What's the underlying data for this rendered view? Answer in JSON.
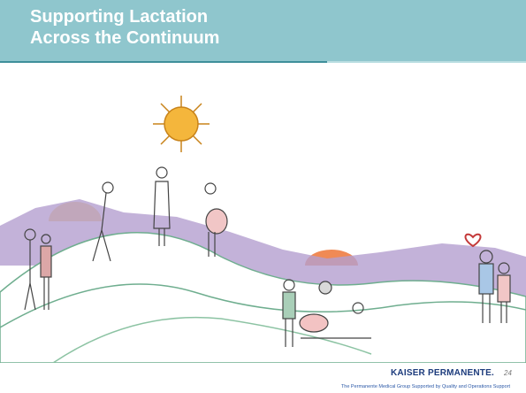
{
  "header": {
    "title_lines": [
      "Supporting Lactation",
      "Across the Continuum"
    ]
  },
  "footer": {
    "logo": "KAISER PERMANENTE.",
    "page_number": "24",
    "credit": "The Permanente Medical Group Supported by Quality and Operations Support"
  }
}
